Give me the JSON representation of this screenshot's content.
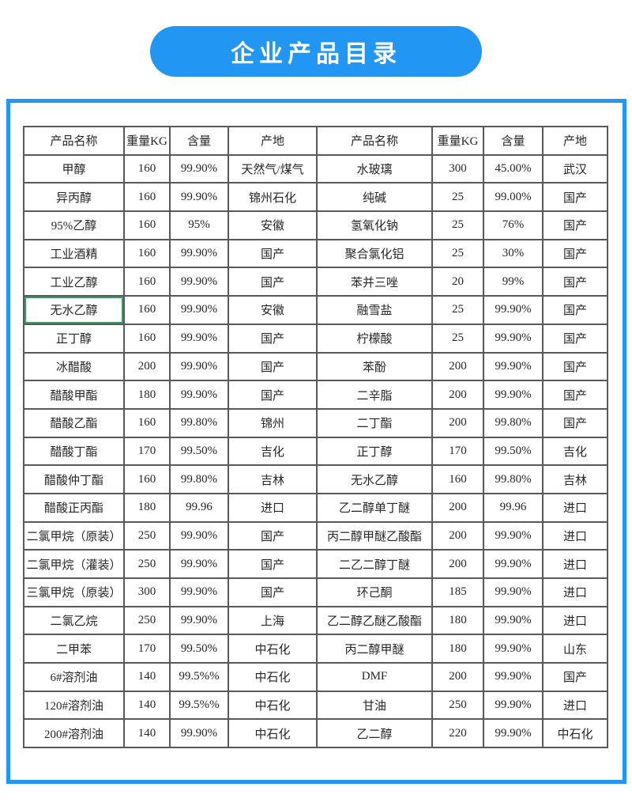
{
  "page": {
    "banner_title": "企业产品目录"
  },
  "colors": {
    "accent_blue": "#2196f3",
    "table_border": "#595959",
    "selection_green": "#2ba25f",
    "banner_text": "#ffffff"
  },
  "table": {
    "columns": [
      "产品名称",
      "重量KG",
      "含量",
      "产地",
      "产品名称",
      "重量KG",
      "含量",
      "产地"
    ],
    "rows": [
      [
        "甲醇",
        "160",
        "99.90%",
        "天然气/煤气",
        "水玻璃",
        "300",
        "45.00%",
        "武汉"
      ],
      [
        "异丙醇",
        "160",
        "99.90%",
        "锦州石化",
        "纯碱",
        "25",
        "99.00%",
        "国产"
      ],
      [
        "95%乙醇",
        "160",
        "95%",
        "安徽",
        "氢氧化钠",
        "25",
        "76%",
        "国产"
      ],
      [
        "工业酒精",
        "160",
        "99.90%",
        "国产",
        "聚合氯化铝",
        "25",
        "30%",
        "国产"
      ],
      [
        "工业乙醇",
        "160",
        "99.90%",
        "国产",
        "苯并三唑",
        "20",
        "99%",
        "国产"
      ],
      [
        "无水乙醇",
        "160",
        "99.90%",
        "安徽",
        "融雪盐",
        "25",
        "99.90%",
        "国产"
      ],
      [
        "正丁醇",
        "160",
        "99.90%",
        "国产",
        "柠檬酸",
        "25",
        "99.90%",
        "国产"
      ],
      [
        "冰醋酸",
        "200",
        "99.90%",
        "国产",
        "苯酚",
        "200",
        "99.90%",
        "国产"
      ],
      [
        "醋酸甲酯",
        "180",
        "99.90%",
        "国产",
        "二辛脂",
        "200",
        "99.90%",
        "国产"
      ],
      [
        "醋酸乙酯",
        "160",
        "99.80%",
        "锦州",
        "二丁酯",
        "200",
        "99.80%",
        "国产"
      ],
      [
        "醋酸丁酯",
        "170",
        "99.50%",
        "吉化",
        "正丁醇",
        "170",
        "99.50%",
        "吉化"
      ],
      [
        "醋酸仲丁酯",
        "160",
        "99.80%",
        "吉林",
        "无水乙醇",
        "160",
        "99.80%",
        "吉林"
      ],
      [
        "醋酸正丙酯",
        "180",
        "99.96",
        "进口",
        "乙二醇单丁醚",
        "200",
        "99.96",
        "进口"
      ],
      [
        "二氯甲烷（原装）",
        "250",
        "99.90%",
        "国产",
        "丙二醇甲醚乙酸酯",
        "200",
        "99.90%",
        "进口"
      ],
      [
        "二氯甲烷（灌装）",
        "250",
        "99.90%",
        "国产",
        "二乙二醇丁醚",
        "200",
        "99.90%",
        "进口"
      ],
      [
        "三氯甲烷（原装）",
        "300",
        "99.90%",
        "国产",
        "环己酮",
        "185",
        "99.90%",
        "进口"
      ],
      [
        "二氯乙烷",
        "250",
        "99.90%",
        "上海",
        "乙二醇乙醚乙酸酯",
        "180",
        "99.90%",
        "进口"
      ],
      [
        "二甲苯",
        "170",
        "99.50%",
        "中石化",
        "丙二醇甲醚",
        "180",
        "99.90%",
        "山东"
      ],
      [
        "6#溶剂油",
        "140",
        "99.5%%",
        "中石化",
        "DMF",
        "200",
        "99.90%",
        "国产"
      ],
      [
        "120#溶剂油",
        "140",
        "99.5%%",
        "中石化",
        "甘油",
        "250",
        "99.90%",
        "进口"
      ],
      [
        "200#溶剂油",
        "140",
        "99.90%",
        "中石化",
        "乙二醇",
        "220",
        "99.90%",
        "中石化"
      ]
    ],
    "selected_cell": {
      "row": 5,
      "col": 0
    }
  }
}
